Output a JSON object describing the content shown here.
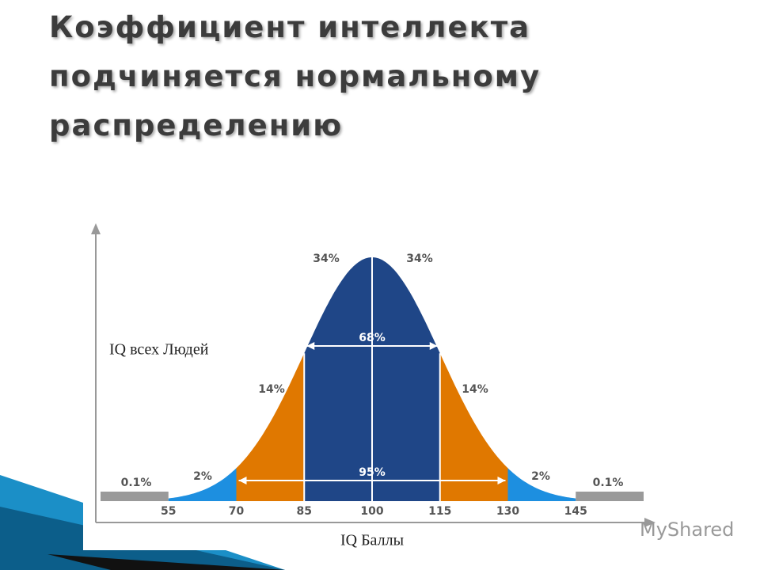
{
  "slide": {
    "title_lines": [
      "Коэффициент интеллекта",
      "подчиняется нормальному",
      "распределению"
    ],
    "watermark": "MyShared"
  },
  "chart_data": {
    "type": "normal",
    "ylabel": "IQ всех Людей",
    "xlabel": "IQ Баллы",
    "xlim": [
      40,
      160
    ],
    "xticks": [
      55,
      70,
      85,
      100,
      115,
      130,
      145
    ],
    "values": [
      0.1,
      2,
      14,
      34,
      34,
      14,
      2,
      0.1
    ],
    "value_labels": [
      "0.1%",
      "2%",
      "14%",
      "34%",
      "34%",
      "14%",
      "2%",
      "0.1%"
    ],
    "colors": [
      "#9a9a9a",
      "#1d8fe0",
      "#e07800",
      "#1f4687",
      "#1f4687",
      "#e07800",
      "#1d8fe0",
      "#9a9a9a"
    ],
    "spans": [
      {
        "value": 68,
        "label": "68%",
        "range": [
          85,
          115
        ]
      },
      {
        "value": 95,
        "label": "95%",
        "range": [
          70,
          130
        ]
      }
    ]
  }
}
